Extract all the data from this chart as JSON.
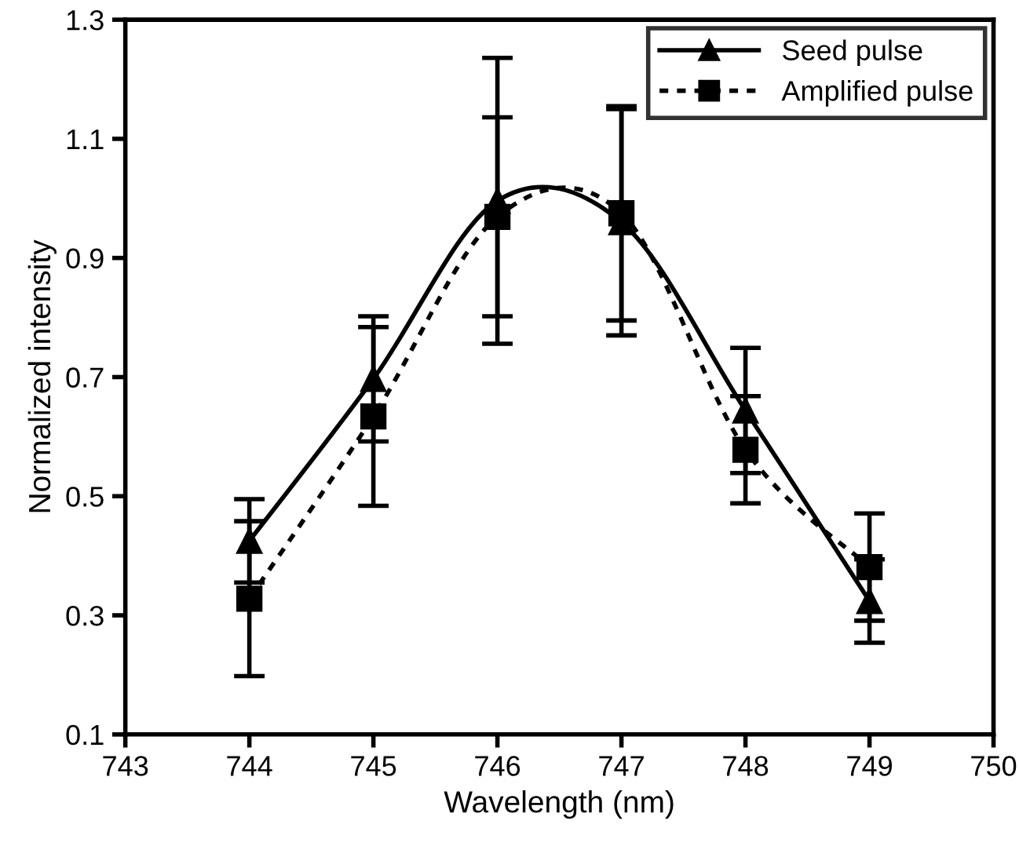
{
  "chart_data": {
    "type": "line",
    "xlabel": "Wavelength (nm)",
    "ylabel": "Normalized intensity",
    "x": [
      744,
      745,
      746,
      747,
      748,
      749
    ],
    "series": [
      {
        "name": "Seed pulse",
        "color": "#000000",
        "marker": "triangle",
        "line_style": "solid",
        "values": [
          0.425,
          0.697,
          0.996,
          0.96,
          0.644,
          0.324
        ],
        "errors": [
          0.07,
          0.105,
          0.24,
          0.19,
          0.105,
          0.07
        ]
      },
      {
        "name": "Amplified pulse",
        "color": "#000000",
        "marker": "square",
        "line_style": "dotted",
        "values": [
          0.328,
          0.634,
          0.969,
          0.975,
          0.578,
          0.381
        ],
        "errors": [
          0.13,
          0.15,
          0.167,
          0.18,
          0.09,
          0.09
        ]
      }
    ],
    "xlim": [
      743,
      750
    ],
    "xticks": [
      743,
      744,
      745,
      746,
      747,
      748,
      749,
      750
    ],
    "ylim": [
      0.1,
      1.3
    ],
    "yticks": [
      0.1,
      0.3,
      0.5,
      0.7,
      0.9,
      1.1,
      1.3
    ],
    "grid": false,
    "legend": "top right"
  }
}
